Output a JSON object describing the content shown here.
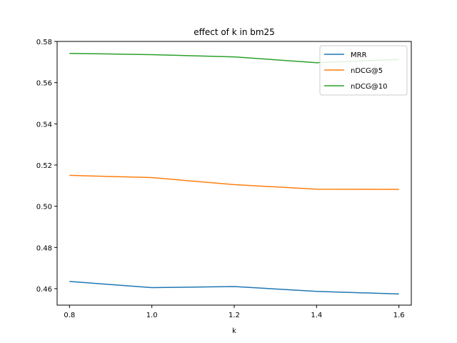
{
  "chart_data": {
    "type": "line",
    "title": "effect of k in bm25",
    "xlabel": "k",
    "ylabel": "",
    "x": [
      0.8,
      1.0,
      1.2,
      1.4,
      1.6
    ],
    "xticks": [
      "0.8",
      "1.0",
      "1.2",
      "1.4",
      "1.6"
    ],
    "yticks": [
      "0.46",
      "0.48",
      "0.50",
      "0.52",
      "0.54",
      "0.56",
      "0.58"
    ],
    "xlim": [
      0.77,
      1.63
    ],
    "ylim": [
      0.452,
      0.58
    ],
    "grid": false,
    "legend_position": "top-right",
    "series": [
      {
        "name": "MRR",
        "color": "#1f77b4",
        "values": [
          0.4635,
          0.4605,
          0.461,
          0.4587,
          0.4574
        ]
      },
      {
        "name": "nDCG@5",
        "color": "#ff7f0e",
        "values": [
          0.515,
          0.5139,
          0.5105,
          0.5083,
          0.5082
        ]
      },
      {
        "name": "nDCG@10",
        "color": "#2ca02c",
        "values": [
          0.5742,
          0.5736,
          0.5725,
          0.5697,
          0.5713
        ]
      }
    ]
  }
}
